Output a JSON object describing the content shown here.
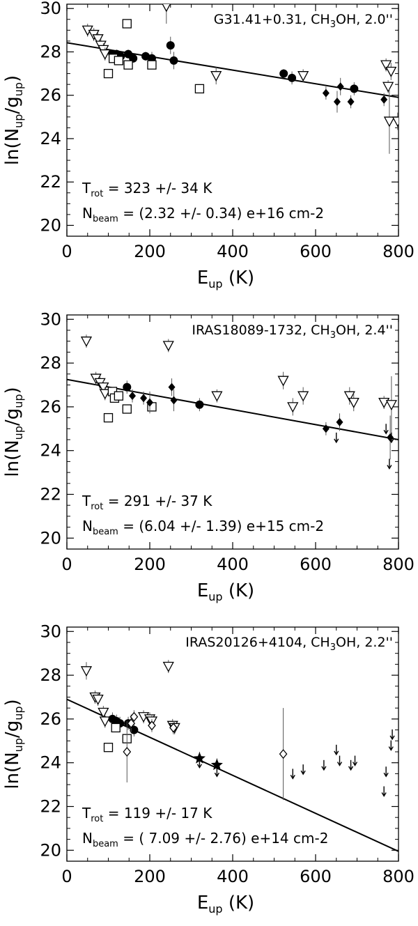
{
  "chart_data": [
    {
      "type": "scatter",
      "annotation": {
        "source": "G31.41+0.31, CH",
        "sub": "3",
        "rest": "OH, 2.0''"
      },
      "xlabel": {
        "main": "E",
        "sub": "up",
        "rest": " (K)"
      },
      "ylabel": {
        "pre": "ln(N",
        "sub1": "up",
        "mid": "/g",
        "sub2": "up",
        "post": ")"
      },
      "xlim": [
        0,
        800
      ],
      "ylim": [
        19.5,
        30.2
      ],
      "x_ticks": [
        0,
        200,
        400,
        600,
        800
      ],
      "y_ticks": [
        20,
        22,
        24,
        26,
        28,
        30
      ],
      "x_tick_labels": [
        "0",
        "200",
        "400",
        "600",
        "800"
      ],
      "y_tick_labels": [
        "20",
        "22",
        "24",
        "26",
        "28",
        "30"
      ],
      "fit_line": {
        "x": [
          0,
          800
        ],
        "y": [
          28.42,
          25.9
        ]
      },
      "trot_text": {
        "label": "T",
        "sub": "rot",
        "value": " = 323 +/- 34 K"
      },
      "nbeam_text": {
        "label": "N",
        "sub": "beam",
        "value": " = (2.32 +/- 0.34) e+16 cm-2"
      },
      "series": [
        {
          "name": "open triangles",
          "marker": "tri-open",
          "points": [
            [
              50,
              29.0,
              0.3
            ],
            [
              65,
              28.8,
              0.3
            ],
            [
              75,
              28.6,
              0.3
            ],
            [
              82,
              28.3,
              0.3
            ],
            [
              88,
              28.1,
              0.3
            ],
            [
              92,
              27.9,
              0.3
            ],
            [
              240,
              30.1,
              0.8
            ],
            [
              360,
              26.9,
              0.4
            ],
            [
              570,
              26.9,
              0.3
            ],
            [
              770,
              27.4,
              0.3
            ],
            [
              782,
              27.1,
              0.4
            ],
            [
              775,
              26.4,
              0.3
            ],
            [
              778,
              24.8,
              1.5
            ],
            [
              798,
              24.8,
              0.4
            ]
          ]
        },
        {
          "name": "filled circles",
          "marker": "circle-filled",
          "points": [
            [
              110,
              27.9,
              0.2
            ],
            [
              120,
              27.9,
              0.2
            ],
            [
              130,
              27.8,
              0.2
            ],
            [
              148,
              27.9,
              0.2
            ],
            [
              160,
              27.7,
              0.2
            ],
            [
              190,
              27.8,
              0.2
            ],
            [
              205,
              27.7,
              0.3
            ],
            [
              250,
              28.3,
              0.4
            ],
            [
              258,
              27.6,
              0.4
            ],
            [
              523,
              27.0,
              0.2
            ],
            [
              543,
              26.8,
              0.3
            ],
            [
              693,
              26.3,
              0.3
            ]
          ]
        },
        {
          "name": "open squares",
          "marker": "square-open",
          "points": [
            [
              145,
              29.3,
              0
            ],
            [
              100,
              27.0,
              0
            ],
            [
              112,
              27.7,
              0
            ],
            [
              125,
              27.6,
              0
            ],
            [
              148,
              27.4,
              0
            ],
            [
              205,
              27.4,
              0
            ],
            [
              320,
              26.3,
              0
            ]
          ]
        },
        {
          "name": "filled diamonds",
          "marker": "diamond-filled",
          "points": [
            [
              625,
              26.1,
              0.3
            ],
            [
              652,
              25.7,
              0.5
            ],
            [
              660,
              26.4,
              0.4
            ],
            [
              685,
              25.7,
              0.3
            ],
            [
              765,
              25.8,
              0.3
            ]
          ]
        }
      ]
    },
    {
      "type": "scatter",
      "annotation": {
        "source": "IRAS18089-1732, CH",
        "sub": "3",
        "rest": "OH, 2.4''"
      },
      "xlabel": {
        "main": "E",
        "sub": "up",
        "rest": " (K)"
      },
      "ylabel": {
        "pre": "ln(N",
        "sub1": "up",
        "mid": "/g",
        "sub2": "up",
        "post": ")"
      },
      "xlim": [
        0,
        800
      ],
      "ylim": [
        19.5,
        30.2
      ],
      "x_ticks": [
        0,
        200,
        400,
        600,
        800
      ],
      "y_ticks": [
        20,
        22,
        24,
        26,
        28,
        30
      ],
      "x_tick_labels": [
        "0",
        "200",
        "400",
        "600",
        "800"
      ],
      "y_tick_labels": [
        "20",
        "22",
        "24",
        "26",
        "28",
        "30"
      ],
      "fit_line": {
        "x": [
          0,
          800
        ],
        "y": [
          27.25,
          24.5
        ]
      },
      "trot_text": {
        "label": "T",
        "sub": "rot",
        "value": " = 291 +/- 37 K"
      },
      "nbeam_text": {
        "label": "N",
        "sub": "beam",
        "value": " = (6.04 +/- 1.39) e+15 cm-2"
      },
      "series": [
        {
          "name": "open triangles",
          "marker": "tri-open",
          "points": [
            [
              47,
              29.0,
              0.3
            ],
            [
              70,
              27.3,
              0.3
            ],
            [
              80,
              27.1,
              0.3
            ],
            [
              88,
              26.9,
              0.3
            ],
            [
              92,
              26.6,
              0.3
            ],
            [
              245,
              28.8,
              0.3
            ],
            [
              362,
              26.5,
              0.3
            ],
            [
              522,
              27.2,
              0.4
            ],
            [
              545,
              26.0,
              0.4
            ],
            [
              570,
              26.5,
              0.4
            ],
            [
              682,
              26.5,
              0.4
            ],
            [
              692,
              26.2,
              0.4
            ],
            [
              765,
              26.2,
              0.3
            ],
            [
              783,
              26.1,
              1.3
            ]
          ]
        },
        {
          "name": "filled circles",
          "marker": "circle-filled",
          "points": [
            [
              145,
              26.9,
              0.3
            ],
            [
              320,
              26.1,
              0.3
            ]
          ]
        },
        {
          "name": "open squares",
          "marker": "square-open",
          "points": [
            [
              100,
              25.5,
              0
            ],
            [
              110,
              26.7,
              0
            ],
            [
              115,
              26.4,
              0
            ],
            [
              125,
              26.5,
              0
            ],
            [
              145,
              25.9,
              0
            ],
            [
              205,
              26.0,
              0
            ]
          ]
        },
        {
          "name": "filled diamonds",
          "marker": "diamond-filled",
          "points": [
            [
              158,
              26.5,
              0.3
            ],
            [
              185,
              26.4,
              0.3
            ],
            [
              200,
              26.2,
              0.5
            ],
            [
              253,
              26.9,
              0.4
            ],
            [
              258,
              26.3,
              0.5
            ],
            [
              625,
              25.0,
              0.3
            ],
            [
              658,
              25.3,
              0.4
            ],
            [
              780,
              24.6,
              1.0
            ]
          ]
        },
        {
          "name": "upper limits",
          "marker": "arrow-down",
          "points": [
            [
              650,
              24.6,
              0
            ],
            [
              770,
              25.0,
              0
            ],
            [
              783,
              24.6,
              0
            ],
            [
              778,
              23.4,
              0
            ]
          ]
        }
      ]
    },
    {
      "type": "scatter",
      "annotation": {
        "source": "IRAS20126+4104, CH",
        "sub": "3",
        "rest": "OH, 2.2''"
      },
      "xlabel": {
        "main": "E",
        "sub": "up",
        "rest": " (K)"
      },
      "ylabel": {
        "pre": "ln(N",
        "sub1": "up",
        "mid": "/g",
        "sub2": "up",
        "post": ")"
      },
      "xlim": [
        0,
        800
      ],
      "ylim": [
        19.5,
        30.2
      ],
      "x_ticks": [
        0,
        200,
        400,
        600,
        800
      ],
      "y_ticks": [
        20,
        22,
        24,
        26,
        28,
        30
      ],
      "x_tick_labels": [
        "0",
        "200",
        "400",
        "600",
        "800"
      ],
      "y_tick_labels": [
        "20",
        "22",
        "24",
        "26",
        "28",
        "30"
      ],
      "fit_line": {
        "x": [
          0,
          800
        ],
        "y": [
          26.9,
          19.95
        ]
      },
      "trot_text": {
        "label": "T",
        "sub": "rot",
        "value": " = 119 +/-  17 K"
      },
      "nbeam_text": {
        "label": "N",
        "sub": "beam",
        "value": " = ( 7.09 +/-  2.76) e+14 cm-2"
      },
      "series": [
        {
          "name": "open triangles",
          "marker": "tri-open",
          "points": [
            [
              47,
              28.2,
              0.4
            ],
            [
              68,
              27.0,
              0.3
            ],
            [
              75,
              26.9,
              0.3
            ],
            [
              88,
              26.3,
              0.3
            ],
            [
              92,
              25.9,
              0.3
            ],
            [
              245,
              28.4,
              0.3
            ],
            [
              185,
              26.1,
              0.3
            ],
            [
              200,
              26.0,
              0.3
            ],
            [
              205,
              25.9,
              0.3
            ],
            [
              255,
              25.7,
              0.3
            ],
            [
              260,
              25.6,
              0.3
            ]
          ]
        },
        {
          "name": "filled circles",
          "marker": "circle-filled",
          "points": [
            [
              110,
              26.0,
              0.3
            ],
            [
              120,
              25.9,
              0.3
            ],
            [
              128,
              25.8,
              0.3
            ],
            [
              148,
              25.8,
              0.3
            ],
            [
              162,
              25.5,
              0.3
            ]
          ]
        },
        {
          "name": "open squares",
          "marker": "square-open",
          "points": [
            [
              100,
              24.7,
              0
            ],
            [
              118,
              25.6,
              0
            ],
            [
              145,
              25.1,
              0
            ]
          ]
        },
        {
          "name": "open diamonds",
          "marker": "diamond-open",
          "points": [
            [
              145,
              24.5,
              1.4
            ],
            [
              155,
              25.8,
              0.4
            ],
            [
              162,
              26.1,
              0.3
            ],
            [
              205,
              25.7,
              0.3
            ],
            [
              257,
              25.6,
              0.3
            ],
            [
              522,
              24.4,
              2.1
            ]
          ]
        },
        {
          "name": "filled stars",
          "marker": "star-filled",
          "points": [
            [
              320,
              24.2,
              0.3
            ],
            [
              362,
              23.9,
              0.3
            ]
          ]
        },
        {
          "name": "upper limits",
          "marker": "arrow-down",
          "points": [
            [
              320,
              24.0,
              0
            ],
            [
              362,
              23.6,
              0
            ],
            [
              545,
              23.5,
              0
            ],
            [
              570,
              23.7,
              0
            ],
            [
              620,
              23.9,
              0
            ],
            [
              650,
              24.6,
              0
            ],
            [
              658,
              24.1,
              0
            ],
            [
              685,
              23.9,
              0
            ],
            [
              695,
              24.1,
              0
            ],
            [
              765,
              22.7,
              0
            ],
            [
              770,
              23.6,
              0
            ],
            [
              782,
              24.8,
              0
            ],
            [
              785,
              25.3,
              0
            ]
          ]
        }
      ]
    }
  ]
}
